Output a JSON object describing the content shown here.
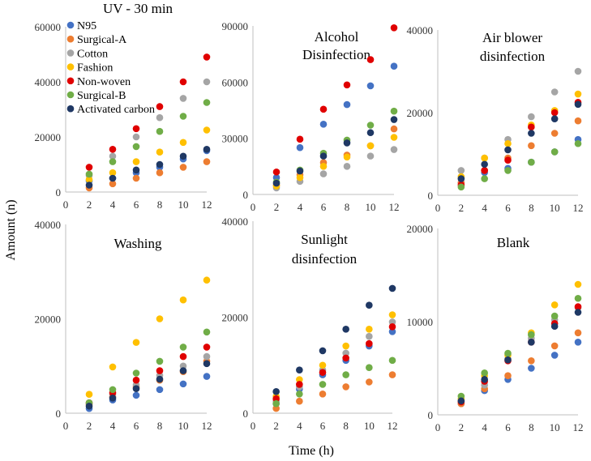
{
  "figure": {
    "xlabel": "Time (h)",
    "ylabel": "Amount (n)"
  },
  "legend": [
    {
      "name": "N95",
      "color": "#4472C4"
    },
    {
      "name": "Surgical-A",
      "color": "#ED7D31"
    },
    {
      "name": "Cotton",
      "color": "#A5A5A5"
    },
    {
      "name": "Fashion",
      "color": "#FFC000"
    },
    {
      "name": "Non-woven",
      "color": "#E00000"
    },
    {
      "name": "Surgical-B",
      "color": "#70AD47"
    },
    {
      "name": "Activated carbon",
      "color": "#1F3864"
    }
  ],
  "chart_data": [
    {
      "type": "scatter",
      "title": "UV - 30 min",
      "xlabel": "Time (h)",
      "ylabel": "Amount (n)",
      "x": [
        2,
        4,
        6,
        8,
        10,
        12
      ],
      "xlim": [
        0,
        12
      ],
      "xticks": [
        0,
        2,
        4,
        6,
        8,
        10,
        12
      ],
      "ylim": [
        0,
        60000
      ],
      "yticks": [
        0,
        20000,
        40000,
        60000
      ],
      "legend": true,
      "series": [
        {
          "name": "N95",
          "values": [
            4000,
            5000,
            7000,
            9000,
            12000,
            15000
          ]
        },
        {
          "name": "Surgical-A",
          "values": [
            1500,
            3000,
            5000,
            7000,
            9000,
            11000
          ]
        },
        {
          "name": "Cotton",
          "values": [
            6000,
            13000,
            20000,
            27000,
            34000,
            40000
          ]
        },
        {
          "name": "Fashion",
          "values": [
            4500,
            7000,
            11000,
            14500,
            18000,
            22500
          ]
        },
        {
          "name": "Non-woven",
          "values": [
            9000,
            15500,
            23000,
            31000,
            40000,
            49000
          ]
        },
        {
          "name": "Surgical-B",
          "values": [
            6500,
            11000,
            16500,
            22000,
            27500,
            32500
          ]
        },
        {
          "name": "Activated carbon",
          "values": [
            2500,
            5000,
            8000,
            10000,
            13000,
            15500
          ]
        }
      ]
    },
    {
      "type": "scatter",
      "title": "Alcohol Disinfection",
      "title_lines": [
        "Alcohol",
        "Disinfection"
      ],
      "x": [
        2,
        4,
        6,
        8,
        10,
        12
      ],
      "xlim": [
        0,
        12
      ],
      "xticks": [
        0,
        2,
        4,
        6,
        8,
        10,
        12
      ],
      "ylim": [
        0,
        90000
      ],
      "yticks": [
        0,
        30000,
        60000,
        90000
      ],
      "series": [
        {
          "name": "N95",
          "values": [
            9000,
            25000,
            37500,
            48000,
            58000,
            68500
          ]
        },
        {
          "name": "Surgical-A",
          "values": [
            5000,
            10500,
            17000,
            21000,
            26000,
            35000
          ]
        },
        {
          "name": "Cotton",
          "values": [
            3500,
            7000,
            11000,
            15000,
            20500,
            24000
          ]
        },
        {
          "name": "Fashion",
          "values": [
            4500,
            9000,
            15000,
            20000,
            26000,
            30500
          ]
        },
        {
          "name": "Non-woven",
          "values": [
            12000,
            29500,
            45500,
            58500,
            72000,
            89000
          ]
        },
        {
          "name": "Surgical-B",
          "values": [
            6500,
            13000,
            22000,
            29000,
            37000,
            44500
          ]
        },
        {
          "name": "Activated carbon",
          "values": [
            6000,
            12500,
            20500,
            27500,
            33000,
            40000
          ]
        }
      ]
    },
    {
      "type": "scatter",
      "title": "Air blower disinfection",
      "title_lines": [
        "Air blower",
        "disinfection"
      ],
      "x": [
        2,
        4,
        6,
        8,
        10,
        12
      ],
      "xlim": [
        0,
        12
      ],
      "xticks": [
        0,
        2,
        4,
        6,
        8,
        10,
        12
      ],
      "ylim": [
        0,
        40000
      ],
      "yticks": [
        0,
        20000,
        40000
      ],
      "series": [
        {
          "name": "N95",
          "values": [
            3000,
            5500,
            6500,
            8000,
            10500,
            13500
          ]
        },
        {
          "name": "Surgical-A",
          "values": [
            3000,
            6000,
            9000,
            12000,
            15000,
            18000
          ]
        },
        {
          "name": "Cotton",
          "values": [
            6000,
            9000,
            13500,
            19000,
            25000,
            30000
          ]
        },
        {
          "name": "Fashion",
          "values": [
            4500,
            9000,
            12500,
            17000,
            20500,
            24500
          ]
        },
        {
          "name": "Non-woven",
          "values": [
            2500,
            6000,
            8500,
            16500,
            20000,
            22500
          ]
        },
        {
          "name": "Surgical-B",
          "values": [
            2000,
            4000,
            6000,
            8000,
            10500,
            12500
          ]
        },
        {
          "name": "Activated carbon",
          "values": [
            4000,
            7500,
            11000,
            15000,
            18500,
            22000
          ]
        }
      ]
    },
    {
      "type": "scatter",
      "title": "Washing",
      "x": [
        2,
        4,
        6,
        8,
        10,
        12
      ],
      "xlim": [
        0,
        12
      ],
      "xticks": [
        0,
        2,
        4,
        6,
        8,
        10,
        12
      ],
      "ylim": [
        0,
        40000
      ],
      "yticks": [
        0,
        20000,
        40000
      ],
      "series": [
        {
          "name": "N95",
          "values": [
            1000,
            2800,
            3800,
            5000,
            6200,
            7800
          ]
        },
        {
          "name": "Surgical-A",
          "values": [
            1800,
            3500,
            5500,
            7000,
            8800,
            11000
          ]
        },
        {
          "name": "Cotton",
          "values": [
            2000,
            4000,
            6000,
            8000,
            10000,
            12000
          ]
        },
        {
          "name": "Fashion",
          "values": [
            4000,
            9800,
            15000,
            20000,
            24000,
            28200
          ]
        },
        {
          "name": "Non-woven",
          "values": [
            2200,
            4300,
            7000,
            9000,
            12000,
            14000
          ]
        },
        {
          "name": "Surgical-B",
          "values": [
            2200,
            5000,
            8500,
            11000,
            14000,
            17200
          ]
        },
        {
          "name": "Activated carbon",
          "values": [
            1500,
            3200,
            5200,
            7200,
            9000,
            10500
          ]
        }
      ]
    },
    {
      "type": "scatter",
      "title": "Sunlight disinfection",
      "title_lines": [
        "Sunlight",
        "disinfection"
      ],
      "x": [
        2,
        4,
        6,
        8,
        10,
        12
      ],
      "xlim": [
        0,
        12
      ],
      "xticks": [
        0,
        2,
        4,
        6,
        8,
        10,
        12
      ],
      "ylim": [
        0,
        40000
      ],
      "yticks": [
        0,
        20000,
        40000
      ],
      "series": [
        {
          "name": "N95",
          "values": [
            2000,
            5000,
            8000,
            11000,
            14000,
            17000
          ]
        },
        {
          "name": "Surgical-A",
          "values": [
            1000,
            2500,
            4000,
            5500,
            6500,
            8000
          ]
        },
        {
          "name": "Cotton",
          "values": [
            2500,
            5500,
            9000,
            12500,
            16000,
            19000
          ]
        },
        {
          "name": "Fashion",
          "values": [
            3500,
            7000,
            10000,
            14000,
            17500,
            20500
          ]
        },
        {
          "name": "Non-woven",
          "values": [
            3000,
            6000,
            8500,
            11500,
            14500,
            18000
          ]
        },
        {
          "name": "Surgical-B",
          "values": [
            2000,
            4000,
            6000,
            8000,
            9500,
            11000
          ]
        },
        {
          "name": "Activated carbon",
          "values": [
            4500,
            9000,
            13000,
            17500,
            22500,
            26000
          ]
        }
      ]
    },
    {
      "type": "scatter",
      "title": "Blank",
      "x": [
        2,
        4,
        6,
        8,
        10,
        12
      ],
      "xlim": [
        0,
        12
      ],
      "xticks": [
        0,
        2,
        4,
        6,
        8,
        10,
        12
      ],
      "ylim": [
        0,
        20000
      ],
      "yticks": [
        0,
        10000,
        20000
      ],
      "series": [
        {
          "name": "N95",
          "values": [
            1200,
            2600,
            3800,
            5000,
            6400,
            7800
          ]
        },
        {
          "name": "Surgical-A",
          "values": [
            1200,
            2800,
            4200,
            5800,
            7400,
            8800
          ]
        },
        {
          "name": "Cotton",
          "values": [
            1500,
            3200,
            6000,
            8200,
            10200,
            11500
          ]
        },
        {
          "name": "Fashion",
          "values": [
            1700,
            4200,
            6400,
            8800,
            11800,
            14000
          ]
        },
        {
          "name": "Non-woven",
          "values": [
            1400,
            3600,
            5800,
            7800,
            9800,
            11600
          ]
        },
        {
          "name": "Surgical-B",
          "values": [
            2000,
            4500,
            6600,
            8600,
            10600,
            12500
          ]
        },
        {
          "name": "Activated carbon",
          "values": [
            1500,
            3800,
            5900,
            7800,
            9500,
            11000
          ]
        }
      ]
    }
  ]
}
